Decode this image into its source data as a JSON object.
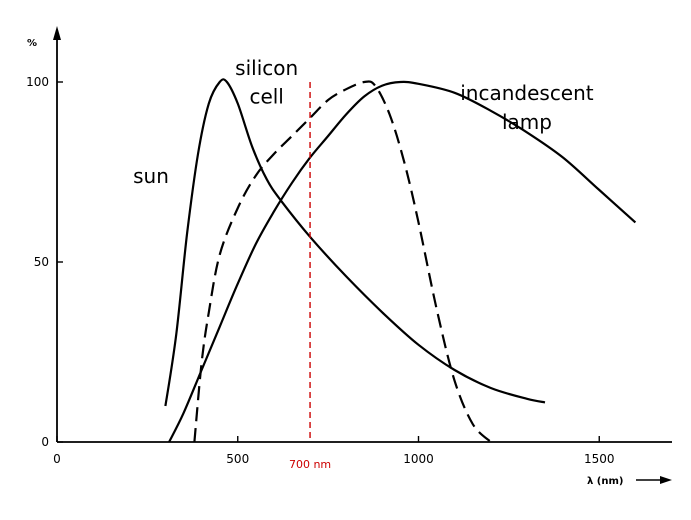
{
  "chart_data": {
    "type": "line",
    "xlabel": "λ (nm)",
    "ylabel": "%",
    "xlim": [
      0,
      1700
    ],
    "ylim": [
      0,
      110
    ],
    "grid": false,
    "x_ticks": [
      0,
      500,
      1000,
      1500
    ],
    "y_ticks": [
      0,
      50,
      100
    ],
    "x_tick_labels": [
      "0",
      "500",
      "1000",
      "1500"
    ],
    "y_tick_labels": [
      "0",
      "50",
      "100"
    ],
    "series": [
      {
        "name": "sun",
        "style": "solid",
        "x": [
          300,
          330,
          360,
          390,
          420,
          450,
          470,
          500,
          540,
          580,
          620,
          700,
          800,
          900,
          1000,
          1100,
          1200,
          1300,
          1350
        ],
        "y": [
          10,
          30,
          58,
          80,
          94,
          100,
          100,
          94,
          82,
          73,
          67,
          57,
          46,
          36,
          27,
          20,
          15,
          12,
          11
        ]
      },
      {
        "name": "silicon cell",
        "style": "dashed",
        "x": [
          380,
          400,
          420,
          450,
          500,
          550,
          600,
          650,
          700,
          750,
          800,
          850,
          880,
          920,
          960,
          1000,
          1050,
          1100,
          1150,
          1200
        ],
        "y": [
          0,
          22,
          36,
          52,
          65,
          74,
          80,
          85,
          90,
          95,
          98,
          100,
          99,
          91,
          78,
          61,
          37,
          17,
          5,
          0
        ]
      },
      {
        "name": "incandescent lamp",
        "style": "solid",
        "x": [
          310,
          350,
          400,
          450,
          500,
          550,
          600,
          650,
          700,
          750,
          800,
          850,
          900,
          950,
          1000,
          1100,
          1200,
          1300,
          1400,
          1500,
          1600
        ],
        "y": [
          0,
          8,
          20,
          32,
          44,
          55,
          64,
          72,
          79,
          85,
          91,
          96,
          99,
          100,
          99.5,
          97,
          92,
          86,
          79,
          70,
          61
        ]
      }
    ],
    "annotations": [
      {
        "text": "sun",
        "x": 260,
        "y": 72
      },
      {
        "text": "silicon",
        "x": 580,
        "y": 102
      },
      {
        "text": "cell",
        "x": 580,
        "y": 94
      },
      {
        "text": "incandescent",
        "x": 1300,
        "y": 95
      },
      {
        "text": "lamp",
        "x": 1300,
        "y": 87
      }
    ],
    "reference_line": {
      "x": 700,
      "label": "700 nm",
      "color": "#cc0000",
      "style": "dashed"
    }
  }
}
